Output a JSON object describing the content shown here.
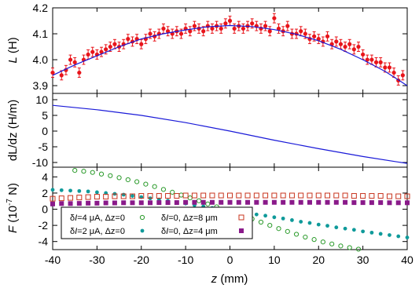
{
  "chart_data": [
    {
      "type": "scatter",
      "panel": "top",
      "ylabel": "L (H)",
      "ylabel_parts": [
        "L",
        " (H)"
      ],
      "ylim": [
        3.87,
        4.2
      ],
      "yticks": [
        3.9,
        4.0,
        4.1,
        4.2
      ],
      "ytick_labels": [
        "3.9",
        "4.0",
        "4.1",
        "4.2"
      ],
      "xlim": [
        -40,
        40
      ],
      "grid": false,
      "colors": {
        "points": "#e8141a",
        "fit": "#1a1ad8"
      },
      "series": [
        {
          "type": "scatter-errorbars",
          "x": [
            -40,
            -38,
            -37,
            -36,
            -35,
            -34,
            -33,
            -32,
            -31,
            -30,
            -29,
            -28,
            -27,
            -26,
            -25,
            -24,
            -23,
            -22,
            -21,
            -20,
            -19,
            -18,
            -17,
            -16,
            -15,
            -14,
            -13,
            -12,
            -11,
            -10,
            -9,
            -8,
            -7,
            -6,
            -5,
            -4,
            -3,
            -2,
            -1,
            0,
            1,
            2,
            3,
            4,
            5,
            6,
            7,
            8,
            9,
            10,
            11,
            12,
            13,
            14,
            15,
            16,
            17,
            18,
            19,
            20,
            21,
            22,
            23,
            24,
            25,
            26,
            27,
            28,
            29,
            30,
            31,
            32,
            33,
            34,
            35,
            36,
            37,
            38,
            39
          ],
          "y": [
            3.95,
            3.94,
            3.96,
            4.0,
            3.99,
            3.95,
            4.0,
            4.02,
            4.03,
            4.02,
            4.03,
            4.04,
            4.05,
            4.06,
            4.05,
            4.06,
            4.08,
            4.07,
            4.08,
            4.06,
            4.08,
            4.1,
            4.09,
            4.1,
            4.12,
            4.11,
            4.1,
            4.11,
            4.1,
            4.12,
            4.11,
            4.13,
            4.12,
            4.11,
            4.13,
            4.12,
            4.13,
            4.12,
            4.14,
            4.15,
            4.12,
            4.13,
            4.12,
            4.13,
            4.14,
            4.13,
            4.12,
            4.13,
            4.11,
            4.16,
            4.12,
            4.11,
            4.13,
            4.1,
            4.1,
            4.11,
            4.1,
            4.08,
            4.09,
            4.08,
            4.07,
            4.09,
            4.06,
            4.07,
            4.06,
            4.05,
            4.06,
            4.04,
            4.05,
            4.02,
            4.0,
            4.0,
            3.99,
            3.99,
            3.97,
            3.97,
            3.95,
            3.92,
            3.94
          ],
          "yerr": 0.018
        },
        {
          "type": "fit-line",
          "x": [
            -40,
            -35,
            -30,
            -25,
            -20,
            -15,
            -10,
            -5,
            0,
            5,
            10,
            15,
            20,
            25,
            30,
            35,
            40
          ],
          "y": [
            3.94,
            3.98,
            4.015,
            4.05,
            4.08,
            4.1,
            4.115,
            4.127,
            4.132,
            4.128,
            4.116,
            4.098,
            4.073,
            4.04,
            4.0,
            3.955,
            3.9
          ]
        }
      ]
    },
    {
      "type": "line",
      "panel": "middle",
      "ylabel": "dL/dz (H/m)",
      "ylabel_parts": [
        "dL/dz",
        " (H/m)"
      ],
      "ylim": [
        -11.5,
        12
      ],
      "yticks": [
        -10,
        -5,
        0,
        5,
        10
      ],
      "ytick_labels": [
        "-10",
        "-5",
        "0",
        "5",
        "10"
      ],
      "xlim": [
        -40,
        40
      ],
      "grid": false,
      "series": [
        {
          "color": "#1a1ad8",
          "x": [
            -40,
            -30,
            -20,
            -10,
            0,
            10,
            20,
            30,
            40
          ],
          "y": [
            8.2,
            6.8,
            5.0,
            2.7,
            0.0,
            -2.9,
            -5.6,
            -8.1,
            -10.3
          ]
        }
      ]
    },
    {
      "type": "scatter",
      "panel": "bottom",
      "ylabel": "F (10^-7 N)",
      "ylabel_parts": [
        "F",
        " (10",
        "-7",
        " N)"
      ],
      "xlabel": "z (mm)",
      "xlabel_parts": [
        "z",
        " (mm)"
      ],
      "ylim": [
        -5,
        5.2
      ],
      "yticks": [
        -4,
        -2,
        0,
        2,
        4
      ],
      "ytick_labels": [
        "-4",
        "-2",
        "0",
        "2",
        "4"
      ],
      "xlim": [
        -40,
        40
      ],
      "xticks": [
        -40,
        -30,
        -20,
        -10,
        0,
        10,
        20,
        30,
        40
      ],
      "xtick_labels": [
        "-40",
        "-30",
        "-20",
        "-10",
        "0",
        "10",
        "20",
        "30",
        "40"
      ],
      "grid": false,
      "legend_position": "bottom-center",
      "series": [
        {
          "name": "δI=4 μA, Δz=0",
          "legend_parts": [
            "δ",
            "I",
            "=4 μA, Δz=0"
          ],
          "marker": "open-circle",
          "color": "#2a9a2a",
          "x": [
            -35,
            -33,
            -31,
            -29,
            -27,
            -25,
            -23,
            -21,
            -19,
            -17,
            -15,
            -13,
            -11,
            -9,
            -7,
            -5,
            -3,
            -1,
            1,
            3,
            5,
            7,
            9,
            11,
            13,
            15,
            17,
            19,
            21,
            23,
            25,
            27,
            29
          ],
          "y": [
            4.8,
            4.7,
            4.55,
            4.35,
            4.15,
            3.9,
            3.65,
            3.4,
            3.1,
            2.8,
            2.45,
            2.1,
            1.75,
            1.4,
            1.05,
            0.65,
            0.3,
            -0.05,
            -0.45,
            -0.8,
            -1.2,
            -1.6,
            -2.0,
            -2.4,
            -2.75,
            -3.1,
            -3.45,
            -3.75,
            -4.05,
            -4.3,
            -4.55,
            -4.75,
            -4.95
          ]
        },
        {
          "name": "δI=2 μA, Δz=0",
          "legend_parts": [
            "δ",
            "I",
            "=2 μA, Δz=0"
          ],
          "marker": "filled-circle",
          "color": "#0f9a9a",
          "x": [
            -40,
            -38,
            -36,
            -34,
            -32,
            -30,
            -28,
            -26,
            -24,
            -22,
            -20,
            -18,
            -16,
            -14,
            -12,
            -10,
            -8,
            -6,
            -4,
            -2,
            0,
            2,
            4,
            6,
            8,
            10,
            12,
            14,
            16,
            18,
            20,
            22,
            24,
            26,
            28,
            30,
            32,
            34,
            36,
            38,
            40
          ],
          "y": [
            2.4,
            2.35,
            2.3,
            2.25,
            2.2,
            2.1,
            2.0,
            1.9,
            1.8,
            1.65,
            1.5,
            1.35,
            1.2,
            1.05,
            0.85,
            0.7,
            0.5,
            0.35,
            0.15,
            0.05,
            -0.1,
            -0.3,
            -0.45,
            -0.65,
            -0.8,
            -1.0,
            -1.15,
            -1.35,
            -1.55,
            -1.7,
            -1.9,
            -2.05,
            -2.25,
            -2.4,
            -2.55,
            -2.75,
            -2.9,
            -3.05,
            -3.2,
            -3.35,
            -3.5
          ]
        },
        {
          "name": "δI=0, Δz=8 μm",
          "legend_parts": [
            "δ",
            "I",
            "=0, Δz=8 μm"
          ],
          "marker": "open-square",
          "color": "#c8341e",
          "x": [
            -40,
            -38,
            -36,
            -34,
            -32,
            -30,
            -28,
            -26,
            -24,
            -22,
            -20,
            -18,
            -16,
            -14,
            -12,
            -10,
            -8,
            -6,
            -4,
            -2,
            0,
            2,
            4,
            6,
            8,
            10,
            12,
            14,
            16,
            18,
            20,
            22,
            24,
            26,
            28,
            30,
            32,
            34,
            36,
            38,
            40
          ],
          "y": [
            1.3,
            1.35,
            1.4,
            1.45,
            1.5,
            1.55,
            1.55,
            1.6,
            1.6,
            1.6,
            1.65,
            1.65,
            1.65,
            1.65,
            1.65,
            1.7,
            1.7,
            1.7,
            1.7,
            1.7,
            1.7,
            1.7,
            1.7,
            1.7,
            1.7,
            1.7,
            1.7,
            1.7,
            1.7,
            1.7,
            1.7,
            1.7,
            1.7,
            1.7,
            1.65,
            1.65,
            1.65,
            1.65,
            1.6,
            1.6,
            1.6
          ]
        },
        {
          "name": "δI=0, Δz=4 μm",
          "legend_parts": [
            "δ",
            "I",
            "=0, Δz=4 μm"
          ],
          "marker": "filled-square",
          "color": "#8a1a8a",
          "x": [
            -40,
            -38,
            -36,
            -34,
            -32,
            -30,
            -28,
            -26,
            -24,
            -22,
            -20,
            -18,
            -16,
            -14,
            -12,
            -10,
            -8,
            -6,
            -4,
            -2,
            0,
            2,
            4,
            6,
            8,
            10,
            12,
            14,
            16,
            18,
            20,
            22,
            24,
            26,
            28,
            30,
            32,
            34,
            36,
            38,
            40
          ],
          "y": [
            0.65,
            0.7,
            0.7,
            0.72,
            0.75,
            0.75,
            0.78,
            0.78,
            0.8,
            0.8,
            0.8,
            0.8,
            0.82,
            0.82,
            0.82,
            0.85,
            0.85,
            0.85,
            0.85,
            0.85,
            0.85,
            0.85,
            0.85,
            0.85,
            0.85,
            0.85,
            0.85,
            0.85,
            0.85,
            0.85,
            0.85,
            0.85,
            0.85,
            0.85,
            0.82,
            0.82,
            0.82,
            0.82,
            0.8,
            0.8,
            0.8
          ]
        }
      ]
    }
  ]
}
